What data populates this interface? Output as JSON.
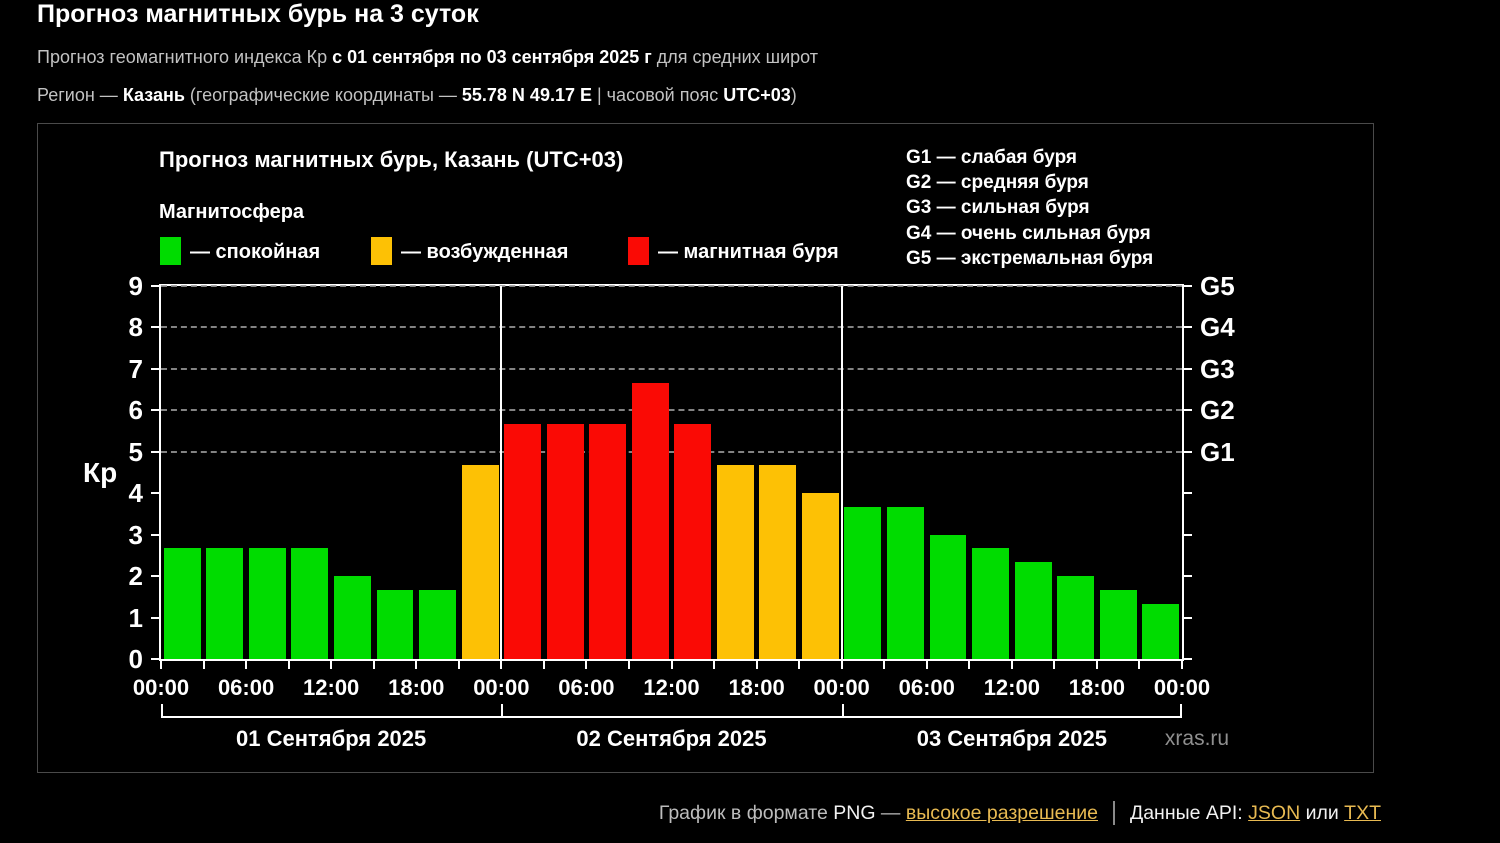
{
  "page": {
    "title": "Прогноз магнитных бурь на 3 суток",
    "subtitle": {
      "pre": "Прогноз геомагнитного индекса Кр ",
      "bold": "с 01 сентября по 03 сентября 2025 г",
      "post": " для средних широт"
    },
    "region": {
      "label": "Регион — ",
      "name": "Казань",
      "mid": " (географические координаты — ",
      "coords": "55.78 N 49.17 E",
      "sep": " | часовой пояс ",
      "tz": "UTC+03",
      "end": ")"
    }
  },
  "chart": {
    "title": "Прогноз магнитных бурь, Казань (UTC+03)",
    "legend_title": "Магнитосфера",
    "legend": [
      {
        "key": "calm",
        "label": "— спокойная",
        "color": "#00dc00"
      },
      {
        "key": "excited",
        "label": "— возбужденная",
        "color": "#fdc105"
      },
      {
        "key": "storm",
        "label": "— магнитная буря",
        "color": "#fa0a05"
      }
    ],
    "g_legend": [
      "G1 — слабая буря",
      "G2 — средняя буря",
      "G3 — сильная буря",
      "G4 — очень сильная буря",
      "G5 — экстремальная буря"
    ],
    "ylabel": "Кр",
    "watermark": "xras.ru"
  },
  "chart_data": {
    "type": "bar",
    "title": "Прогноз магнитных бурь, Казань (UTC+03)",
    "ylabel": "Кр",
    "ylim": [
      0,
      9
    ],
    "yticks": [
      0,
      1,
      2,
      3,
      4,
      5,
      6,
      7,
      8,
      9
    ],
    "gridlines_at": [
      5,
      6,
      7,
      8,
      9
    ],
    "right_axis_labels": [
      {
        "kp": 5,
        "label": "G1"
      },
      {
        "kp": 6,
        "label": "G2"
      },
      {
        "kp": 7,
        "label": "G3"
      },
      {
        "kp": 8,
        "label": "G4"
      },
      {
        "kp": 9,
        "label": "G5"
      }
    ],
    "hours_per_bar": 3,
    "x_labels": [
      "00:00",
      "06:00",
      "12:00",
      "18:00",
      "00:00",
      "06:00",
      "12:00",
      "18:00",
      "00:00",
      "06:00",
      "12:00",
      "18:00",
      "00:00"
    ],
    "status_colors": {
      "calm": "#00dc00",
      "excited": "#fdc105",
      "storm": "#fa0a05"
    },
    "days": [
      {
        "label": "01 Сентября 2025",
        "values": [
          2.67,
          2.67,
          2.67,
          2.67,
          2.0,
          1.67,
          1.67,
          4.67
        ],
        "status": [
          "calm",
          "calm",
          "calm",
          "calm",
          "calm",
          "calm",
          "calm",
          "excited"
        ]
      },
      {
        "label": "02 Сентября 2025",
        "values": [
          5.67,
          5.67,
          5.67,
          6.67,
          5.67,
          4.67,
          4.67,
          4.0
        ],
        "status": [
          "storm",
          "storm",
          "storm",
          "storm",
          "storm",
          "excited",
          "excited",
          "excited"
        ]
      },
      {
        "label": "03 Сентября 2025",
        "values": [
          3.67,
          3.67,
          3.0,
          2.67,
          2.33,
          2.0,
          1.67,
          1.33
        ],
        "status": [
          "calm",
          "calm",
          "calm",
          "calm",
          "calm",
          "calm",
          "calm",
          "calm"
        ]
      }
    ]
  },
  "footer": {
    "png_pre": "График в формате ",
    "png": "PNG",
    "dash": " — ",
    "hires_link": "высокое разрешение",
    "api_pre": "Данные API: ",
    "json_link": "JSON",
    "or_text": " или ",
    "txt_link": "TXT"
  }
}
